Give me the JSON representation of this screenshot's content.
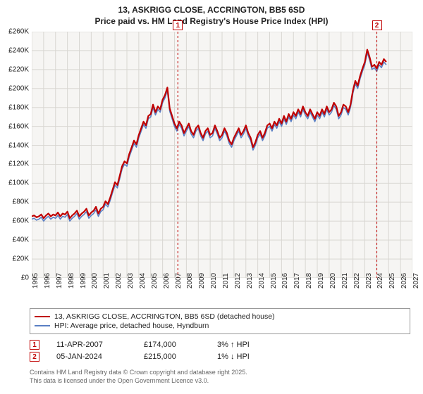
{
  "title": {
    "line1": "13, ASKRIGG CLOSE, ACCRINGTON, BB5 6SD",
    "line2": "Price paid vs. HM Land Registry's House Price Index (HPI)",
    "fontsize": 12
  },
  "chart": {
    "type": "line",
    "background_color": "#f6f5f3",
    "grid_color": "#d8d6d2",
    "xlim": [
      1995,
      2027
    ],
    "ylim": [
      0,
      260000
    ],
    "ytick_step": 20000,
    "ytick_prefix": "£",
    "ytick_suffix": "K",
    "yticks": [
      "£0",
      "£20K",
      "£40K",
      "£60K",
      "£80K",
      "£100K",
      "£120K",
      "£140K",
      "£160K",
      "£180K",
      "£200K",
      "£220K",
      "£240K",
      "£260K"
    ],
    "xticks": [
      1995,
      1996,
      1997,
      1998,
      1999,
      2000,
      2001,
      2002,
      2003,
      2004,
      2005,
      2006,
      2007,
      2008,
      2009,
      2010,
      2011,
      2012,
      2013,
      2014,
      2015,
      2016,
      2017,
      2018,
      2019,
      2020,
      2021,
      2022,
      2023,
      2024,
      2025,
      2026,
      2027
    ],
    "label_fontsize": 10,
    "series": [
      {
        "name": "13, ASKRIGG CLOSE, ACCRINGTON, BB5 6SD (detached house)",
        "color": "#c00000",
        "line_width": 2.2,
        "y_offset": 3000
      },
      {
        "name": "HPI: Average price, detached house, Hyndburn",
        "color": "#5a7fc4",
        "line_width": 1.6,
        "y_offset": 0
      }
    ],
    "base_x_step": 0.2,
    "base_values": [
      62000,
      63000,
      61000,
      62000,
      64000,
      60000,
      63000,
      65000,
      62000,
      64000,
      63000,
      66000,
      62000,
      65000,
      64000,
      67000,
      60000,
      63000,
      65000,
      68000,
      62000,
      65000,
      67000,
      70000,
      63000,
      66000,
      68000,
      72000,
      65000,
      70000,
      72000,
      78000,
      75000,
      82000,
      90000,
      98000,
      95000,
      105000,
      115000,
      120000,
      118000,
      128000,
      135000,
      142000,
      138000,
      148000,
      155000,
      162000,
      158000,
      168000,
      170000,
      180000,
      172000,
      178000,
      175000,
      185000,
      190000,
      198000,
      176000,
      168000,
      160000,
      155000,
      162000,
      158000,
      150000,
      155000,
      160000,
      152000,
      148000,
      155000,
      158000,
      150000,
      145000,
      152000,
      155000,
      148000,
      150000,
      158000,
      152000,
      145000,
      148000,
      155000,
      150000,
      142000,
      138000,
      145000,
      150000,
      155000,
      148000,
      152000,
      158000,
      150000,
      145000,
      135000,
      140000,
      148000,
      152000,
      145000,
      150000,
      158000,
      160000,
      155000,
      162000,
      158000,
      165000,
      160000,
      168000,
      162000,
      170000,
      165000,
      172000,
      168000,
      175000,
      170000,
      178000,
      172000,
      168000,
      175000,
      170000,
      165000,
      172000,
      168000,
      175000,
      170000,
      178000,
      172000,
      175000,
      182000,
      178000,
      168000,
      172000,
      180000,
      178000,
      172000,
      180000,
      195000,
      205000,
      200000,
      210000,
      218000,
      225000,
      238000,
      230000,
      220000,
      222000,
      218000,
      225000,
      222000,
      228000,
      225000
    ],
    "markers": [
      {
        "id": "1",
        "x": 2007.28,
        "color": "#c00000",
        "dash": "3,3"
      },
      {
        "id": "2",
        "x": 2024.01,
        "color": "#c00000",
        "dash": "3,3"
      }
    ]
  },
  "legend": {
    "items": [
      {
        "label": "13, ASKRIGG CLOSE, ACCRINGTON, BB5 6SD (detached house)",
        "color": "#c00000"
      },
      {
        "label": "HPI: Average price, detached house, Hyndburn",
        "color": "#5a7fc4"
      }
    ]
  },
  "sales": [
    {
      "id": "1",
      "date": "11-APR-2007",
      "price": "£174,000",
      "pct": "3% ↑ HPI"
    },
    {
      "id": "2",
      "date": "05-JAN-2024",
      "price": "£215,000",
      "pct": "1% ↓ HPI"
    }
  ],
  "footer": {
    "line1": "Contains HM Land Registry data © Crown copyright and database right 2025.",
    "line2": "This data is licensed under the Open Government Licence v3.0."
  }
}
